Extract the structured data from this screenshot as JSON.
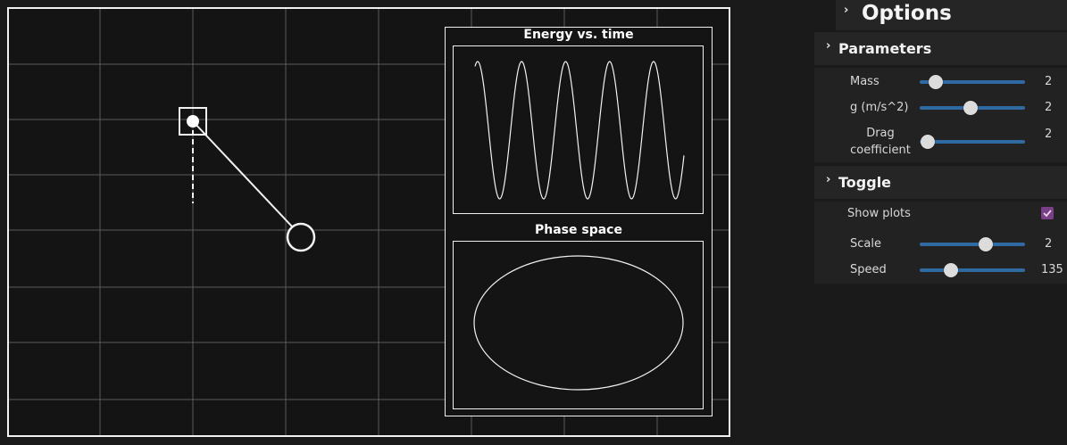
{
  "simulation": {
    "grid_color": "#5a5a5a",
    "line_color": "#f2f2f2"
  },
  "plots": {
    "energy": {
      "title": "Energy vs. time"
    },
    "phase": {
      "title": "Phase space"
    }
  },
  "panel": {
    "title": "Options",
    "parameters": {
      "title": "Parameters",
      "mass": {
        "label": "Mass",
        "value": "2",
        "level": 0.15
      },
      "gravity": {
        "label": "g (m/s^2)",
        "value": "2",
        "level": 0.48
      },
      "drag": {
        "label_line1": "Drag",
        "label_line2": "coefficient",
        "value": "2",
        "level": 0.08
      }
    },
    "toggle": {
      "title": "Toggle",
      "show_plots": {
        "label": "Show plots",
        "checked": true
      },
      "scale": {
        "label": "Scale",
        "value": "2",
        "level": 0.63
      },
      "speed": {
        "label": "Speed",
        "value": "135",
        "level": 0.3
      }
    },
    "accent_color": "#2f6aa3",
    "checkbox_color": "#7a3f86"
  }
}
